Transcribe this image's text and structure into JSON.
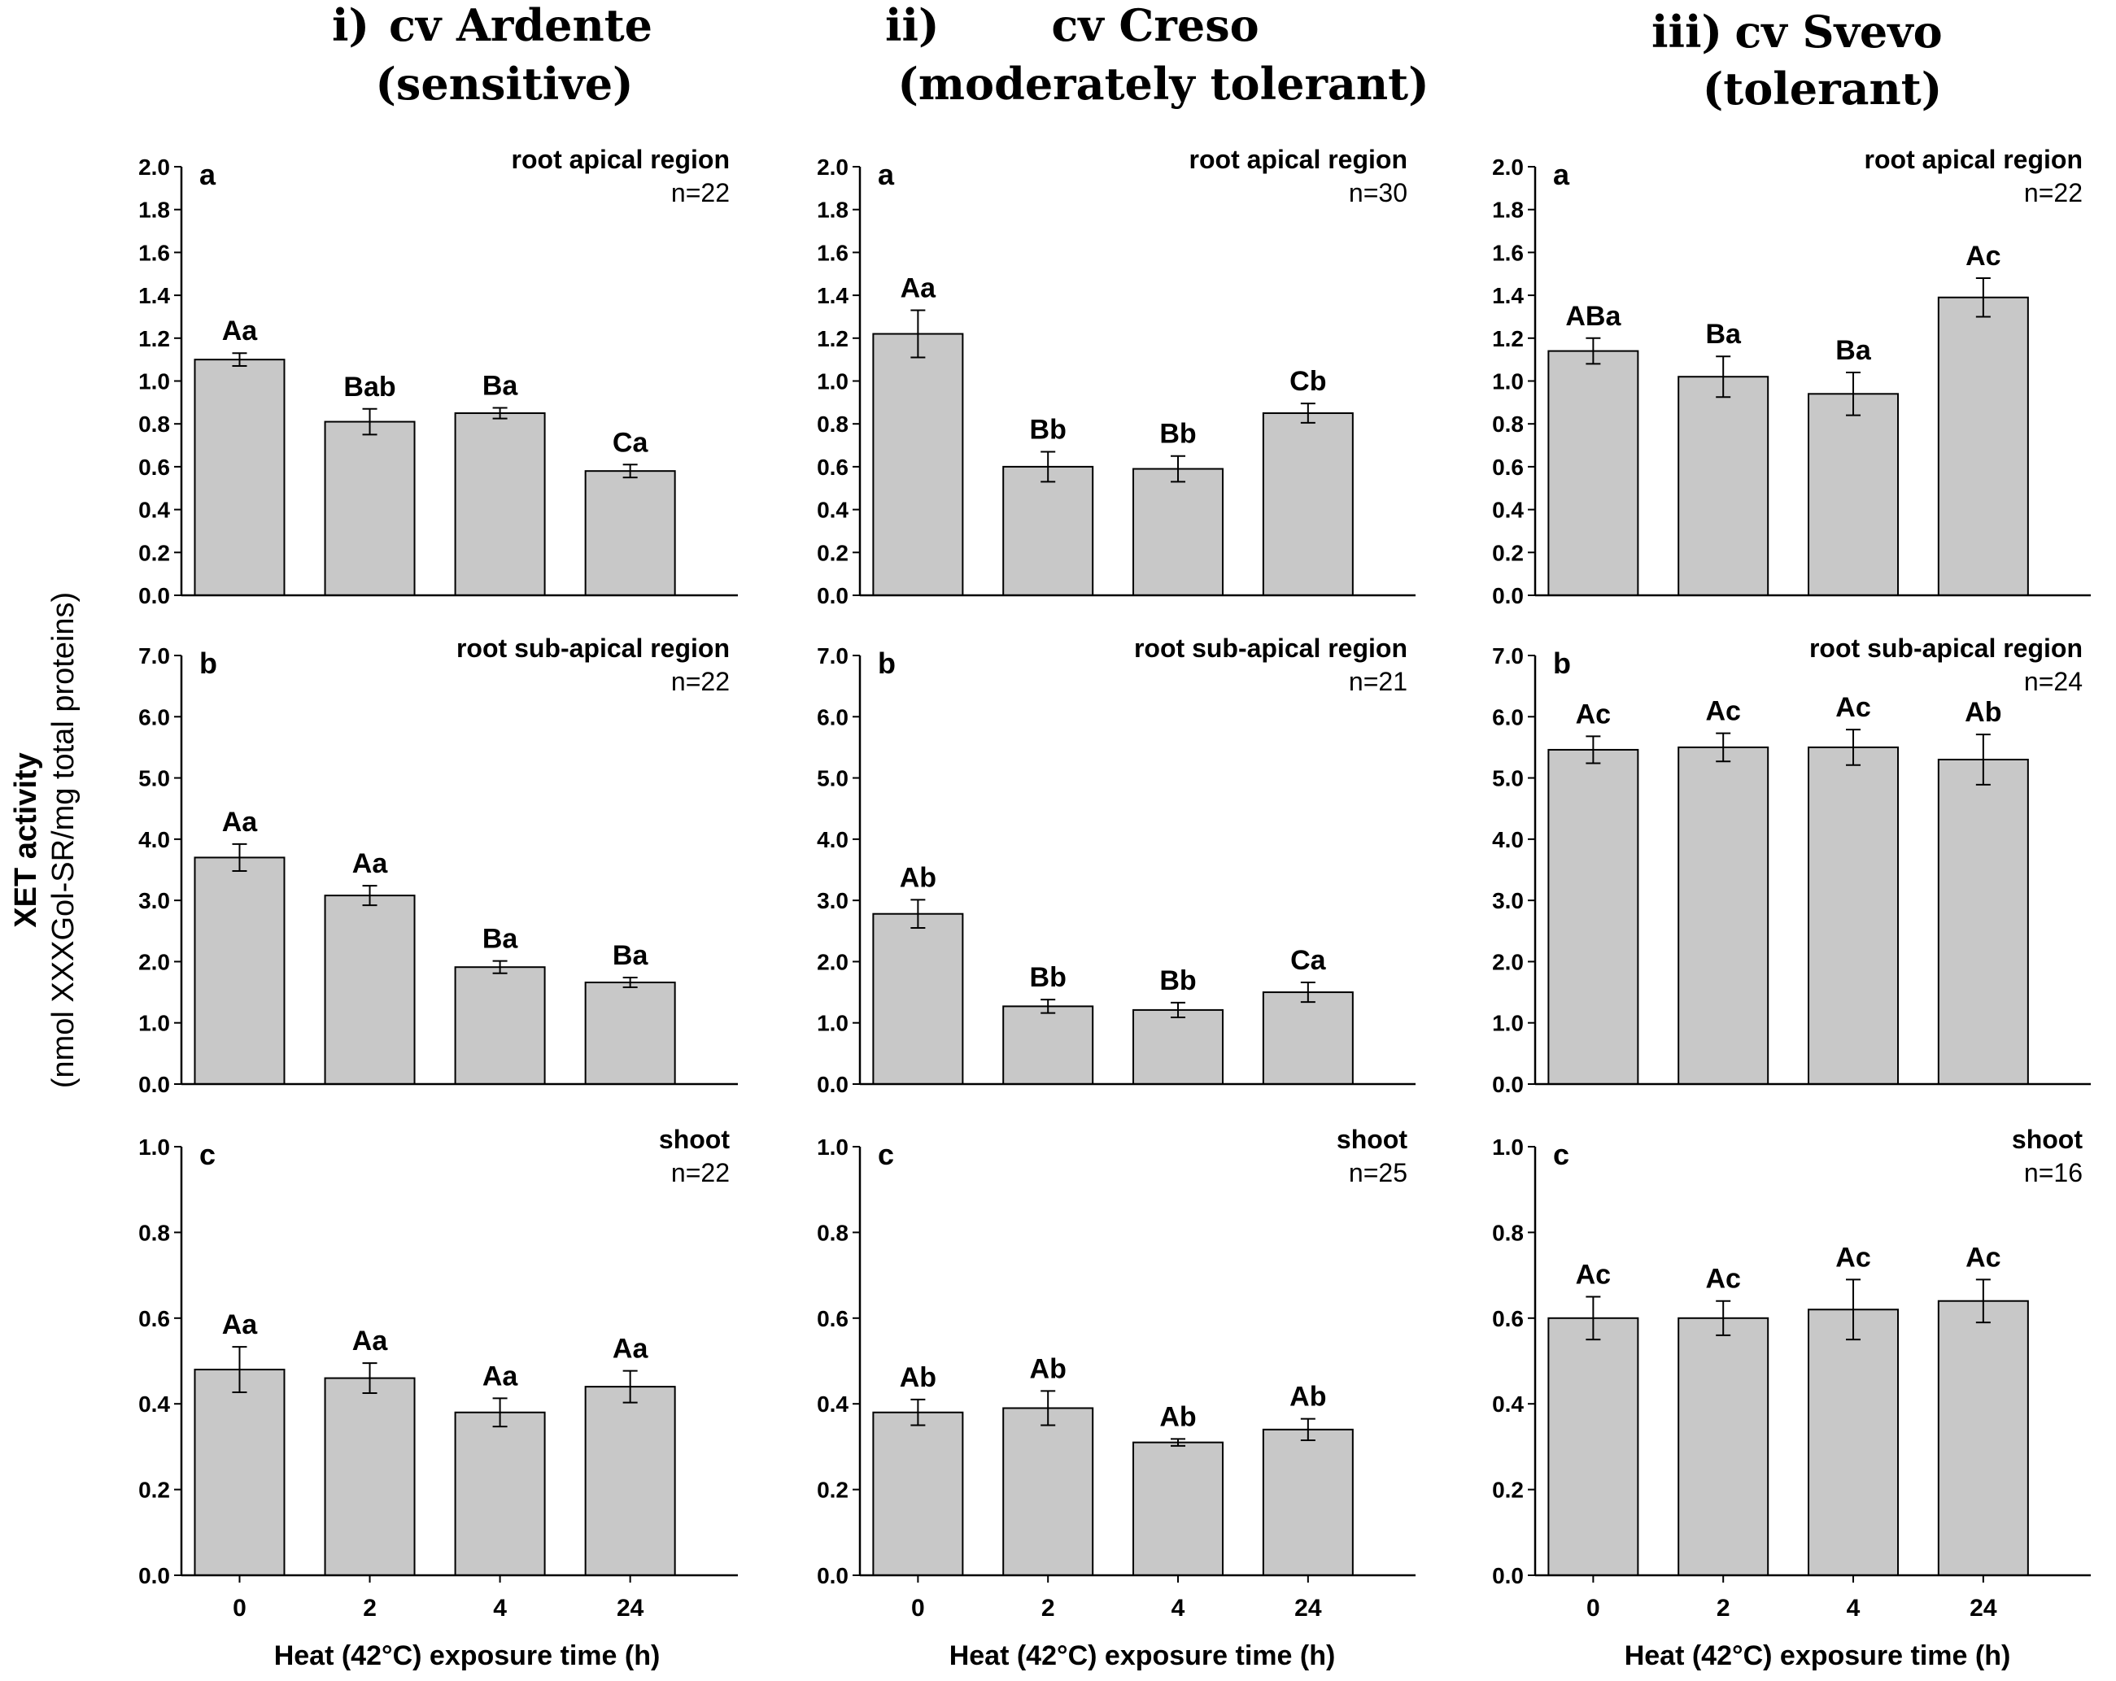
{
  "figure": {
    "y_axis_label_bold": "XET activity",
    "y_axis_label_units": "(nmol XXXGol-SR/mg total proteins)",
    "x_axis_label": "Heat (42°C) exposure time (h)",
    "colors": {
      "bar_fill": "#c8c8c8",
      "bar_stroke": "#000000",
      "axis": "#000000",
      "text": "#000000"
    }
  },
  "columns": [
    {
      "numeral": "i)",
      "cultivar": "cv Ardente",
      "tolerance": "(sensitive)"
    },
    {
      "numeral": "ii)",
      "cultivar": "cv Creso",
      "tolerance": "(moderately tolerant)"
    },
    {
      "numeral": "iii)",
      "cultivar": "cv Svevo",
      "tolerance": "(tolerant)"
    }
  ],
  "chart_data": [
    {
      "type": "bar",
      "panel": "a",
      "region": "root apical region",
      "n": "n=22",
      "categories": [
        "0",
        "2",
        "4",
        "24"
      ],
      "values": [
        1.1,
        0.81,
        0.85,
        0.58
      ],
      "errors": [
        0.03,
        0.06,
        0.025,
        0.03
      ],
      "labels": [
        "Aa",
        "Bab",
        "Ba",
        "Ca"
      ],
      "ylim": [
        0,
        2.0
      ],
      "ticks": [
        "0.0",
        "0.2",
        "0.4",
        "0.6",
        "0.8",
        "1.0",
        "1.2",
        "1.4",
        "1.6",
        "1.8",
        "2.0"
      ]
    },
    {
      "type": "bar",
      "panel": "a",
      "region": "root apical region",
      "n": "n=30",
      "categories": [
        "0",
        "2",
        "4",
        "24"
      ],
      "values": [
        1.22,
        0.6,
        0.59,
        0.85
      ],
      "errors": [
        0.11,
        0.07,
        0.06,
        0.045
      ],
      "labels": [
        "Aa",
        "Bb",
        "Bb",
        "Cb"
      ],
      "ylim": [
        0,
        2.0
      ],
      "ticks": [
        "0.0",
        "0.2",
        "0.4",
        "0.6",
        "0.8",
        "1.0",
        "1.2",
        "1.4",
        "1.6",
        "1.8",
        "2.0"
      ]
    },
    {
      "type": "bar",
      "panel": "a",
      "region": "root apical region",
      "n": "n=22",
      "categories": [
        "0",
        "2",
        "4",
        "24"
      ],
      "values": [
        1.14,
        1.02,
        0.94,
        1.39
      ],
      "errors": [
        0.06,
        0.095,
        0.1,
        0.09
      ],
      "labels": [
        "ABa",
        "Ba",
        "Ba",
        "Ac"
      ],
      "ylim": [
        0,
        2.0
      ],
      "ticks": [
        "0.0",
        "0.2",
        "0.4",
        "0.6",
        "0.8",
        "1.0",
        "1.2",
        "1.4",
        "1.6",
        "1.8",
        "2.0"
      ]
    },
    {
      "type": "bar",
      "panel": "b",
      "region": "root sub-apical region",
      "n": "n=22",
      "categories": [
        "0",
        "2",
        "4",
        "24"
      ],
      "values": [
        3.7,
        3.08,
        1.91,
        1.66
      ],
      "errors": [
        0.22,
        0.16,
        0.1,
        0.08
      ],
      "labels": [
        "Aa",
        "Aa",
        "Ba",
        "Ba"
      ],
      "ylim": [
        0,
        7.0
      ],
      "ticks": [
        "0.0",
        "1.0",
        "2.0",
        "3.0",
        "4.0",
        "5.0",
        "6.0",
        "7.0"
      ]
    },
    {
      "type": "bar",
      "panel": "b",
      "region": "root sub-apical region",
      "n": "n=21",
      "categories": [
        "0",
        "2",
        "4",
        "24"
      ],
      "values": [
        2.78,
        1.27,
        1.21,
        1.5
      ],
      "errors": [
        0.23,
        0.11,
        0.12,
        0.16
      ],
      "labels": [
        "Ab",
        "Bb",
        "Bb",
        "Ca"
      ],
      "ylim": [
        0,
        7.0
      ],
      "ticks": [
        "0.0",
        "1.0",
        "2.0",
        "3.0",
        "4.0",
        "5.0",
        "6.0",
        "7.0"
      ]
    },
    {
      "type": "bar",
      "panel": "b",
      "region": "root sub-apical region",
      "n": "n=24",
      "categories": [
        "0",
        "2",
        "4",
        "24"
      ],
      "values": [
        5.46,
        5.5,
        5.5,
        5.3
      ],
      "errors": [
        0.22,
        0.23,
        0.29,
        0.41
      ],
      "labels": [
        "Ac",
        "Ac",
        "Ac",
        "Ab"
      ],
      "ylim": [
        0,
        7.0
      ],
      "ticks": [
        "0.0",
        "1.0",
        "2.0",
        "3.0",
        "4.0",
        "5.0",
        "6.0",
        "7.0"
      ]
    },
    {
      "type": "bar",
      "panel": "c",
      "region": "shoot",
      "n": "n=22",
      "categories": [
        "0",
        "2",
        "4",
        "24"
      ],
      "values": [
        0.48,
        0.46,
        0.38,
        0.44
      ],
      "errors": [
        0.053,
        0.035,
        0.033,
        0.037
      ],
      "labels": [
        "Aa",
        "Aa",
        "Aa",
        "Aa"
      ],
      "ylim": [
        0,
        1.0
      ],
      "ticks": [
        "0.0",
        "0.2",
        "0.4",
        "0.6",
        "0.8",
        "1.0"
      ]
    },
    {
      "type": "bar",
      "panel": "c",
      "region": "shoot",
      "n": "n=25",
      "categories": [
        "0",
        "2",
        "4",
        "24"
      ],
      "values": [
        0.38,
        0.39,
        0.31,
        0.34
      ],
      "errors": [
        0.03,
        0.04,
        0.008,
        0.025
      ],
      "labels": [
        "Ab",
        "Ab",
        "Ab",
        "Ab"
      ],
      "ylim": [
        0,
        1.0
      ],
      "ticks": [
        "0.0",
        "0.2",
        "0.4",
        "0.6",
        "0.8",
        "1.0"
      ]
    },
    {
      "type": "bar",
      "panel": "c",
      "region": "shoot",
      "n": "n=16",
      "categories": [
        "0",
        "2",
        "4",
        "24"
      ],
      "values": [
        0.6,
        0.6,
        0.62,
        0.64
      ],
      "errors": [
        0.05,
        0.04,
        0.07,
        0.05
      ],
      "labels": [
        "Ac",
        "Ac",
        "Ac",
        "Ac"
      ],
      "ylim": [
        0,
        1.0
      ],
      "ticks": [
        "0.0",
        "0.2",
        "0.4",
        "0.6",
        "0.8",
        "1.0"
      ]
    }
  ]
}
